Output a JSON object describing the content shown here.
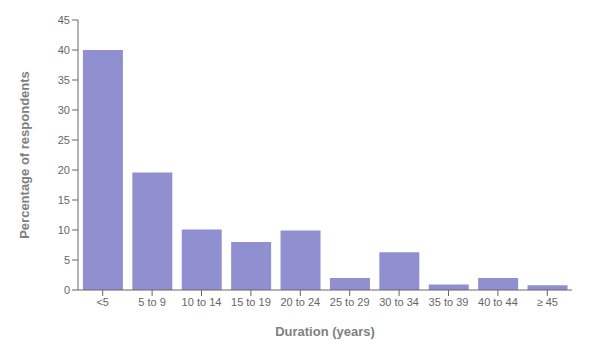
{
  "chart_data": {
    "type": "bar",
    "categories": [
      "<5",
      "5 to 9",
      "10 to 14",
      "15 to 19",
      "20 to 24",
      "25 to 29",
      "30 to 34",
      "35 to 39",
      "40 to 44",
      "≥ 45"
    ],
    "values": [
      40,
      19.6,
      10.1,
      8.0,
      9.9,
      2.0,
      6.3,
      0.9,
      2.0,
      0.8
    ],
    "color": "#9090d0",
    "xlabel": "Duration (years)",
    "ylabel": "Percentage of respondents",
    "ylim": [
      0,
      45
    ],
    "yticks": [
      0,
      5,
      10,
      15,
      20,
      25,
      30,
      35,
      40,
      45
    ],
    "grid": false
  }
}
